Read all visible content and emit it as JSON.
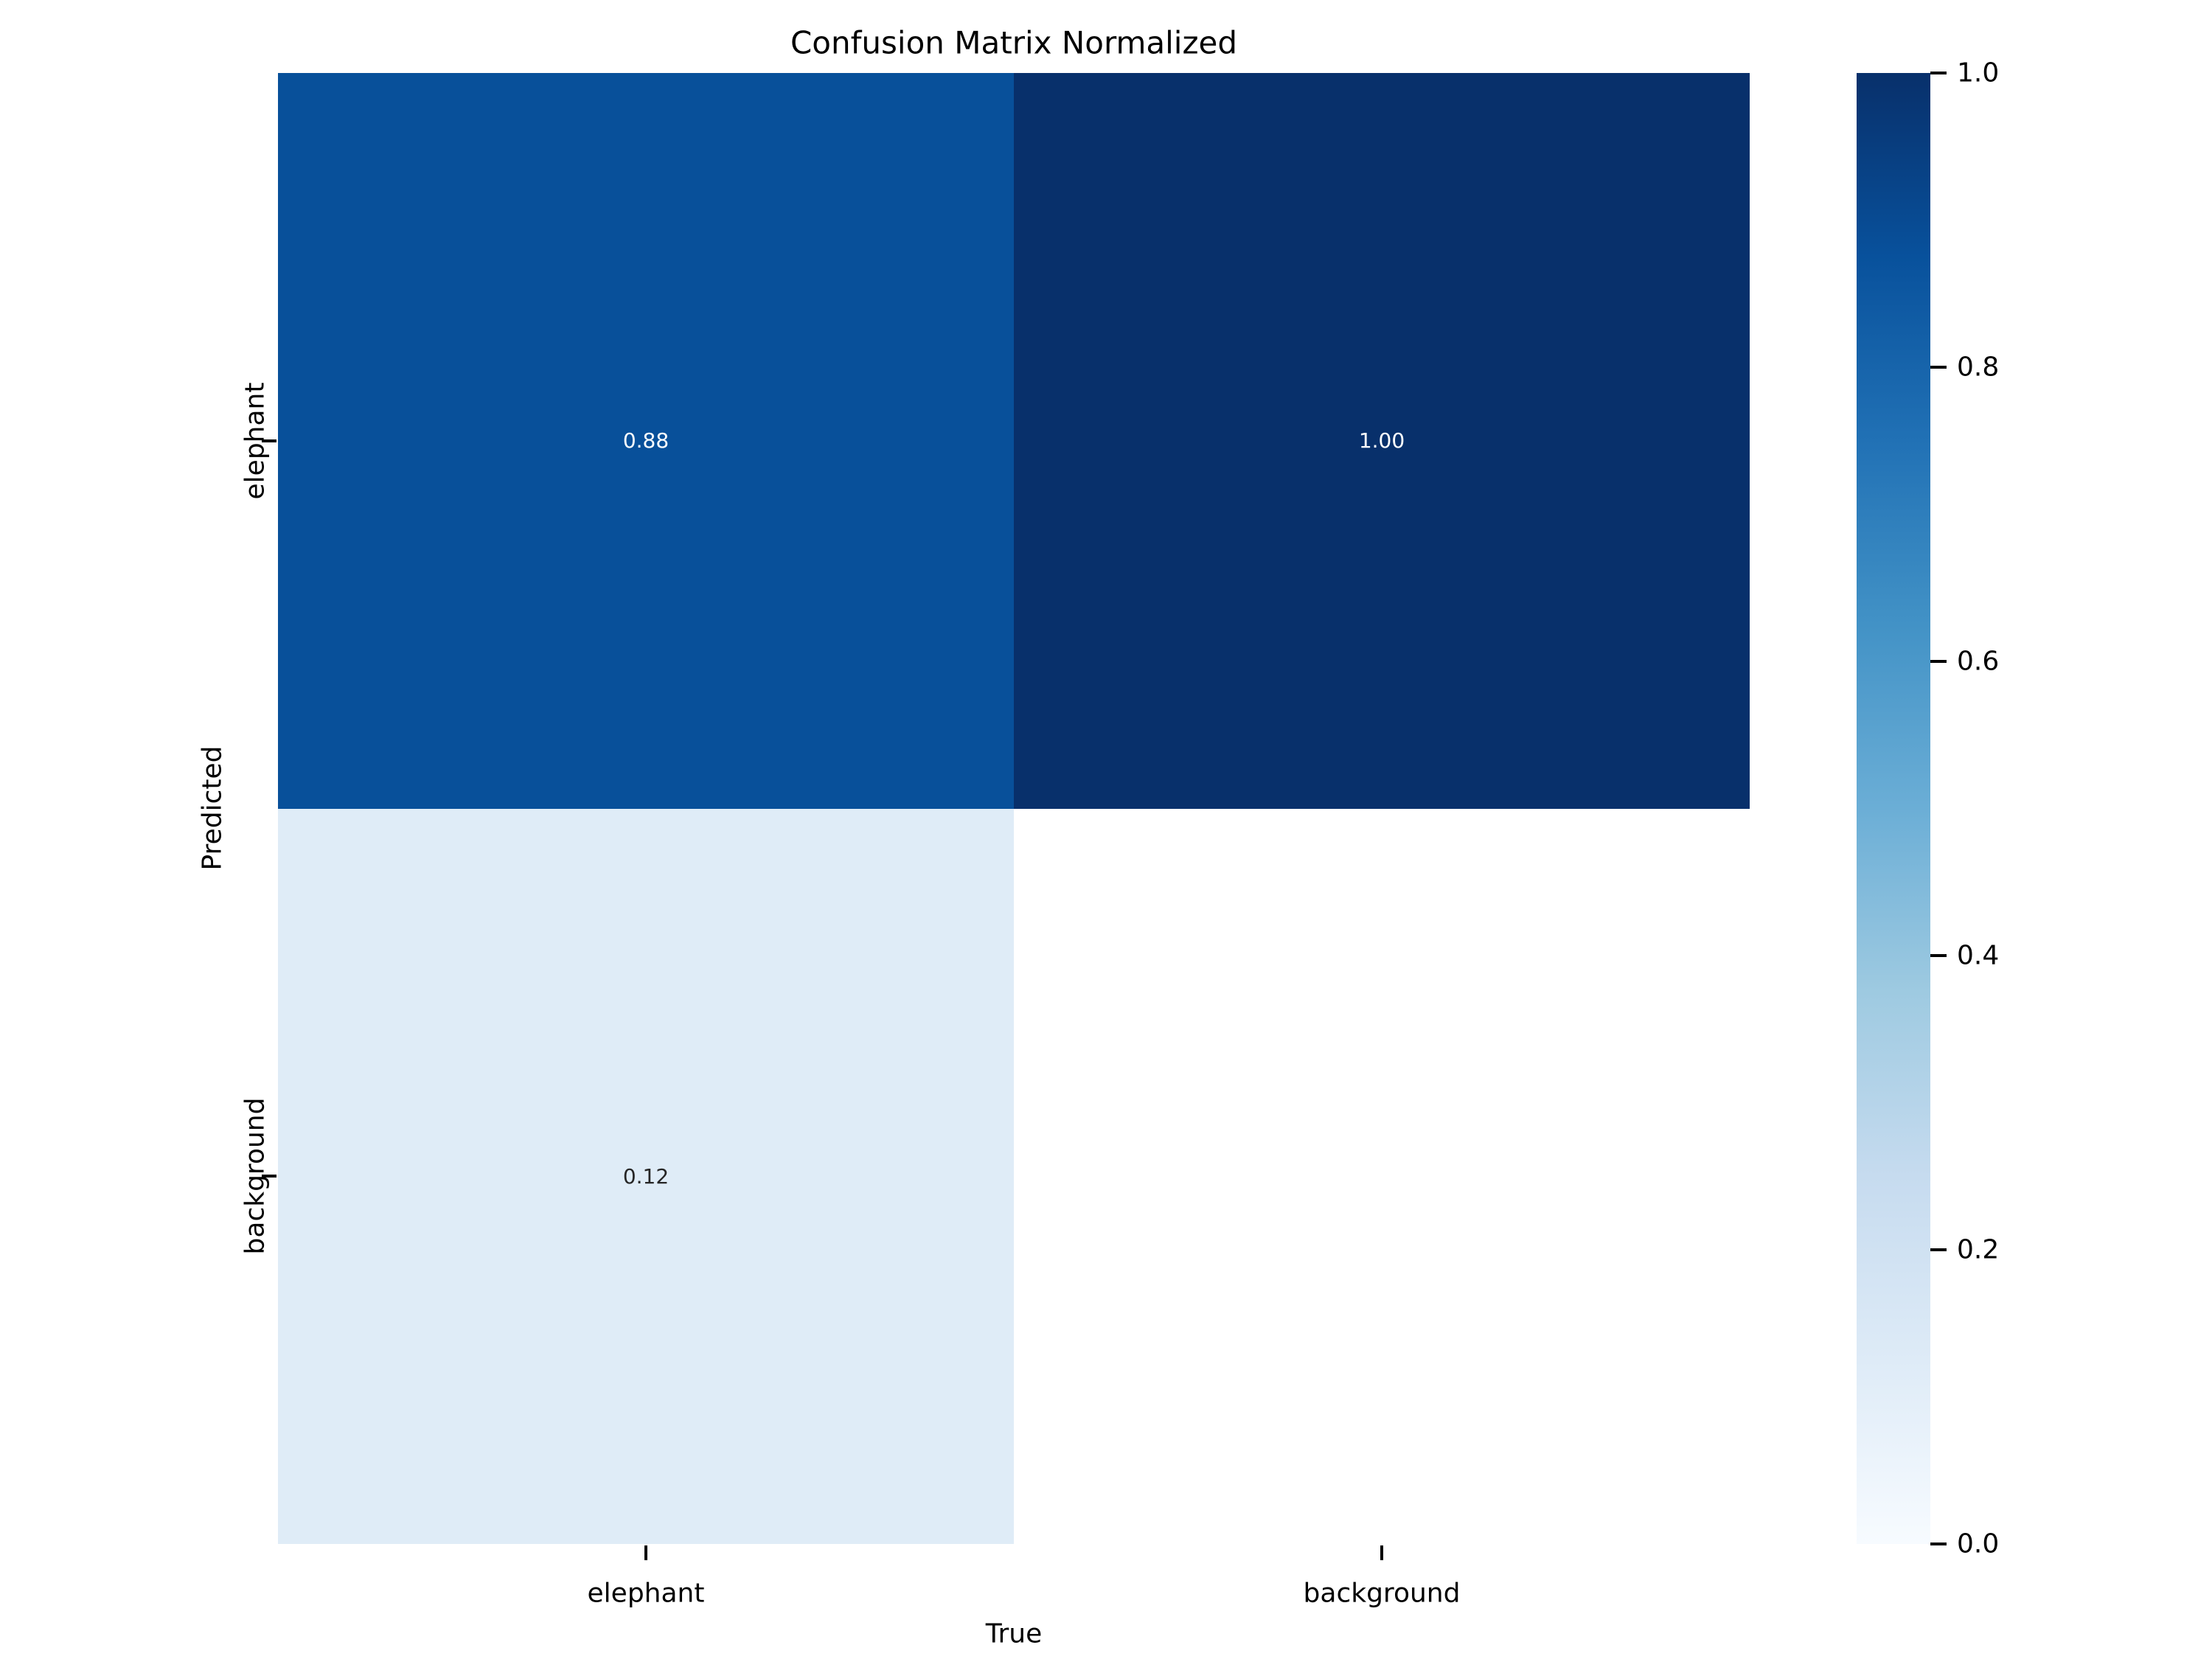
{
  "chart_data": {
    "type": "heatmap",
    "title": "Confusion Matrix Normalized",
    "xlabel": "True",
    "ylabel": "Predicted",
    "x_categories": [
      "elephant",
      "background"
    ],
    "y_categories": [
      "elephant",
      "background"
    ],
    "matrix": [
      [
        0.88,
        1.0
      ],
      [
        0.12,
        null
      ]
    ],
    "value_range": [
      0.0,
      1.0
    ],
    "grid": false,
    "colormap": "Blues",
    "legend_position": "right-colorbar",
    "cells": {
      "r0c0": {
        "value": 0.88,
        "label": "0.88",
        "bg": "#08509a",
        "fg": "#ffffff"
      },
      "r0c1": {
        "value": 1.0,
        "label": "1.00",
        "bg": "#08306b",
        "fg": "#ffffff"
      },
      "r1c0": {
        "value": 0.12,
        "label": "0.12",
        "bg": "#dfecf7",
        "fg": "#262626"
      },
      "r1c1": {
        "value": null,
        "label": "",
        "bg": "#ffffff",
        "fg": "#262626"
      }
    },
    "colorbar": {
      "tick_labels": [
        "1.0",
        "0.8",
        "0.6",
        "0.4",
        "0.2",
        "0.0"
      ],
      "gradient_stops": [
        "#08306b",
        "#08519c",
        "#2171b5",
        "#4292c6",
        "#6baed6",
        "#9ecae1",
        "#c6dbef",
        "#deebf7",
        "#f7fbff"
      ]
    }
  }
}
